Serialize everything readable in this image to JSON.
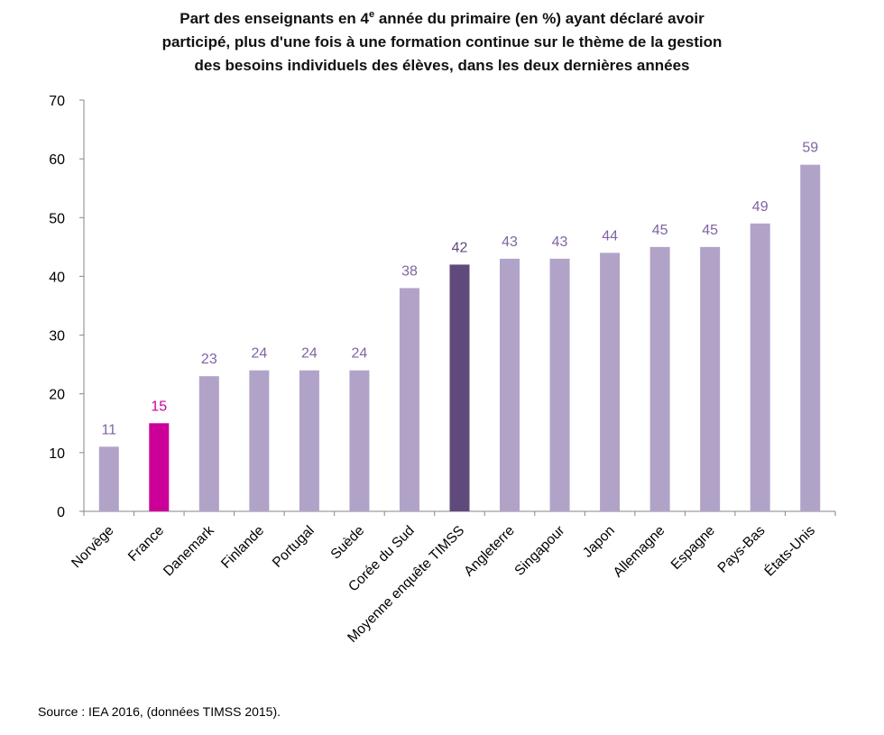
{
  "source": "Source : IEA 2016, (données TIMSS 2015).",
  "colors": {
    "default": "#b1a3c8",
    "highlight": "#cc0099",
    "average": "#604a7b",
    "label_default": "#8064a2",
    "label_highlight": "#cc0099",
    "label_average": "#604a7b"
  },
  "chart_data": {
    "type": "bar",
    "title_lines": [
      {
        "before": "Part des enseignants en 4",
        "sup": "e",
        "after": " année du primaire (en %) ayant déclaré avoir"
      },
      {
        "before": "participé, plus d'une fois à une formation continue sur le thème de la gestion",
        "sup": "",
        "after": ""
      },
      {
        "before": "des besoins individuels des élèves, dans les deux dernières années",
        "sup": "",
        "after": ""
      }
    ],
    "categories": [
      "Norvège",
      "France",
      "Danemark",
      "Finlande",
      "Portugal",
      "Suède",
      "Corée du Sud",
      "Moyenne enquête TIMSS",
      "Angleterre",
      "Singapour",
      "Japon",
      "Allemagne",
      "Espagne",
      "Pays-Bas",
      "États-Unis"
    ],
    "values": [
      11,
      15,
      23,
      24,
      24,
      24,
      38,
      42,
      43,
      43,
      44,
      45,
      45,
      49,
      59
    ],
    "value_labels": [
      "11",
      "15",
      "23",
      "24",
      "24",
      "24",
      "38",
      "42",
      "43",
      "43",
      "44",
      "45",
      "45",
      "49",
      "59"
    ],
    "bar_roles": [
      "default",
      "highlight",
      "default",
      "default",
      "default",
      "default",
      "default",
      "average",
      "default",
      "default",
      "default",
      "default",
      "default",
      "default",
      "default"
    ],
    "yticks": [
      "0",
      "10",
      "20",
      "30",
      "40",
      "50",
      "60",
      "70"
    ],
    "ylim": [
      0,
      70
    ],
    "grid": false,
    "legend": "none"
  }
}
